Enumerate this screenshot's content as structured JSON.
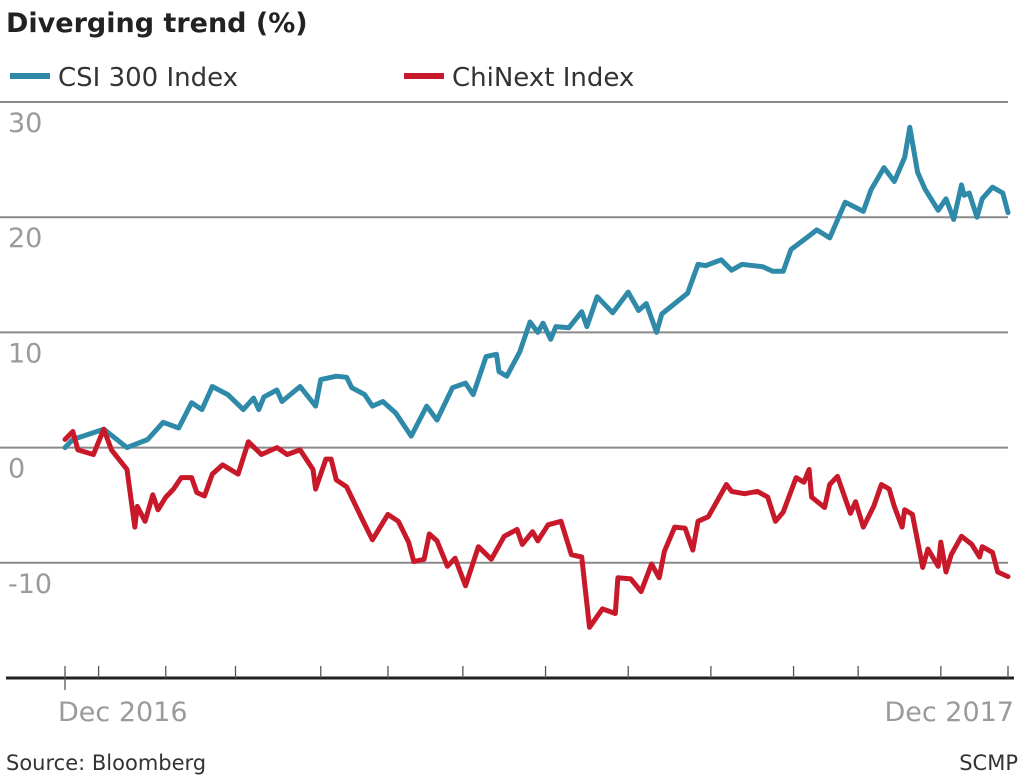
{
  "chart_data": {
    "type": "line",
    "title": "Diverging trend (%)",
    "xlabel": "",
    "ylabel": "",
    "ylim": [
      -20,
      30
    ],
    "xlim": [
      "2016-12-01",
      "2017-12-01"
    ],
    "y_ticks": [
      30,
      20,
      10,
      0,
      -10
    ],
    "x_tick_labels": [
      {
        "date": "2016-12-01",
        "label": "Dec 2016"
      },
      {
        "date": "2017-12-01",
        "label": "Dec 2017"
      }
    ],
    "x_tick_marks": [
      "2016-12-01",
      "2016-12-14",
      "2017-01-09",
      "2017-02-05",
      "2017-03-10",
      "2017-04-05",
      "2017-05-04",
      "2017-06-05",
      "2017-07-07",
      "2017-08-08",
      "2017-09-09",
      "2017-10-04",
      "2017-11-05",
      "2017-12-01"
    ],
    "grid": true,
    "legend": "top-left",
    "source": "Source: Bloomberg",
    "credit": "SCMP",
    "series": [
      {
        "name": "CSI 300 Index",
        "color": "#2e8aa8",
        "points": [
          [
            "2016-12-01",
            0
          ],
          [
            "2016-12-04",
            0.7
          ],
          [
            "2016-12-16",
            1.6
          ],
          [
            "2016-12-25",
            0
          ],
          [
            "2017-01-02",
            0.7
          ],
          [
            "2017-01-08",
            2.2
          ],
          [
            "2017-01-14",
            1.7
          ],
          [
            "2017-01-19",
            3.9
          ],
          [
            "2017-01-23",
            3.3
          ],
          [
            "2017-01-27",
            5.3
          ],
          [
            "2017-02-02",
            4.6
          ],
          [
            "2017-02-08",
            3.3
          ],
          [
            "2017-02-12",
            4.3
          ],
          [
            "2017-02-14",
            3.3
          ],
          [
            "2017-02-16",
            4.4
          ],
          [
            "2017-02-21",
            5.0
          ],
          [
            "2017-02-23",
            4.0
          ],
          [
            "2017-03-02",
            5.3
          ],
          [
            "2017-03-08",
            3.6
          ],
          [
            "2017-03-10",
            5.9
          ],
          [
            "2017-03-16",
            6.2
          ],
          [
            "2017-03-20",
            6.1
          ],
          [
            "2017-03-22",
            5.2
          ],
          [
            "2017-03-27",
            4.6
          ],
          [
            "2017-03-30",
            3.6
          ],
          [
            "2017-04-03",
            4.0
          ],
          [
            "2017-04-08",
            3.0
          ],
          [
            "2017-04-14",
            1.0
          ],
          [
            "2017-04-20",
            3.6
          ],
          [
            "2017-04-24",
            2.4
          ],
          [
            "2017-04-30",
            5.2
          ],
          [
            "2017-05-05",
            5.6
          ],
          [
            "2017-05-08",
            4.6
          ],
          [
            "2017-05-13",
            7.9
          ],
          [
            "2017-05-17",
            8.1
          ],
          [
            "2017-05-18",
            6.6
          ],
          [
            "2017-05-21",
            6.2
          ],
          [
            "2017-05-26",
            8.3
          ],
          [
            "2017-05-30",
            10.9
          ],
          [
            "2017-06-02",
            10.0
          ],
          [
            "2017-06-04",
            10.8
          ],
          [
            "2017-06-07",
            9.4
          ],
          [
            "2017-06-09",
            10.5
          ],
          [
            "2017-06-14",
            10.4
          ],
          [
            "2017-06-19",
            11.8
          ],
          [
            "2017-06-21",
            10.5
          ],
          [
            "2017-06-25",
            13.1
          ],
          [
            "2017-07-01",
            11.7
          ],
          [
            "2017-07-07",
            13.5
          ],
          [
            "2017-07-11",
            11.9
          ],
          [
            "2017-07-14",
            12.5
          ],
          [
            "2017-07-18",
            10.0
          ],
          [
            "2017-07-20",
            11.6
          ],
          [
            "2017-07-30",
            13.4
          ],
          [
            "2017-08-03",
            15.9
          ],
          [
            "2017-08-06",
            15.8
          ],
          [
            "2017-08-12",
            16.3
          ],
          [
            "2017-08-16",
            15.4
          ],
          [
            "2017-08-20",
            15.9
          ],
          [
            "2017-08-28",
            15.7
          ],
          [
            "2017-09-01",
            15.3
          ],
          [
            "2017-09-05",
            15.3
          ],
          [
            "2017-09-08",
            17.2
          ],
          [
            "2017-09-14",
            18.2
          ],
          [
            "2017-09-18",
            18.9
          ],
          [
            "2017-09-23",
            18.2
          ],
          [
            "2017-09-29",
            21.3
          ],
          [
            "2017-10-06",
            20.5
          ],
          [
            "2017-10-09",
            22.4
          ],
          [
            "2017-10-14",
            24.3
          ],
          [
            "2017-10-18",
            23.1
          ],
          [
            "2017-10-22",
            25.2
          ],
          [
            "2017-10-24",
            27.8
          ],
          [
            "2017-10-27",
            23.9
          ],
          [
            "2017-10-30",
            22.4
          ],
          [
            "2017-11-04",
            20.6
          ],
          [
            "2017-11-07",
            21.6
          ],
          [
            "2017-11-10",
            19.8
          ],
          [
            "2017-11-13",
            22.8
          ],
          [
            "2017-11-14",
            21.9
          ],
          [
            "2017-11-16",
            22.1
          ],
          [
            "2017-11-19",
            20.0
          ],
          [
            "2017-11-21",
            21.6
          ],
          [
            "2017-11-25",
            22.6
          ],
          [
            "2017-11-29",
            22.1
          ],
          [
            "2017-12-01",
            20.4
          ]
        ]
      },
      {
        "name": "ChiNext Index",
        "color": "#c8192a",
        "points": [
          [
            "2016-12-01",
            0.7
          ],
          [
            "2016-12-04",
            1.4
          ],
          [
            "2016-12-06",
            -0.2
          ],
          [
            "2016-12-12",
            -0.6
          ],
          [
            "2016-12-16",
            1.6
          ],
          [
            "2016-12-19",
            -0.2
          ],
          [
            "2016-12-25",
            -1.9
          ],
          [
            "2016-12-28",
            -6.9
          ],
          [
            "2016-12-29",
            -5.1
          ],
          [
            "2017-01-01",
            -6.4
          ],
          [
            "2017-01-04",
            -4.1
          ],
          [
            "2017-01-06",
            -5.4
          ],
          [
            "2017-01-09",
            -4.3
          ],
          [
            "2017-01-12",
            -3.6
          ],
          [
            "2017-01-15",
            -2.6
          ],
          [
            "2017-01-19",
            -2.6
          ],
          [
            "2017-01-21",
            -3.9
          ],
          [
            "2017-01-24",
            -4.2
          ],
          [
            "2017-01-27",
            -2.3
          ],
          [
            "2017-01-31",
            -1.5
          ],
          [
            "2017-02-06",
            -2.3
          ],
          [
            "2017-02-10",
            0.5
          ],
          [
            "2017-02-15",
            -0.6
          ],
          [
            "2017-02-21",
            0
          ],
          [
            "2017-02-25",
            -0.6
          ],
          [
            "2017-03-02",
            -0.2
          ],
          [
            "2017-03-07",
            -1.9
          ],
          [
            "2017-03-08",
            -3.6
          ],
          [
            "2017-03-12",
            -1.0
          ],
          [
            "2017-03-14",
            -1.0
          ],
          [
            "2017-03-16",
            -2.8
          ],
          [
            "2017-03-20",
            -3.4
          ],
          [
            "2017-03-26",
            -6.2
          ],
          [
            "2017-03-30",
            -8.0
          ],
          [
            "2017-04-05",
            -5.8
          ],
          [
            "2017-04-09",
            -6.4
          ],
          [
            "2017-04-13",
            -8.2
          ],
          [
            "2017-04-15",
            -9.9
          ],
          [
            "2017-04-19",
            -9.7
          ],
          [
            "2017-04-21",
            -7.5
          ],
          [
            "2017-04-24",
            -8.1
          ],
          [
            "2017-04-28",
            -10.3
          ],
          [
            "2017-05-01",
            -9.6
          ],
          [
            "2017-05-05",
            -12.0
          ],
          [
            "2017-05-10",
            -8.6
          ],
          [
            "2017-05-15",
            -9.7
          ],
          [
            "2017-05-20",
            -7.7
          ],
          [
            "2017-05-25",
            -7.1
          ],
          [
            "2017-05-27",
            -8.4
          ],
          [
            "2017-05-31",
            -7.3
          ],
          [
            "2017-06-02",
            -8.1
          ],
          [
            "2017-06-06",
            -6.7
          ],
          [
            "2017-06-11",
            -6.4
          ],
          [
            "2017-06-15",
            -9.3
          ],
          [
            "2017-06-19",
            -9.5
          ],
          [
            "2017-06-22",
            -15.6
          ],
          [
            "2017-06-27",
            -14.0
          ],
          [
            "2017-07-02",
            -14.4
          ],
          [
            "2017-07-03",
            -11.3
          ],
          [
            "2017-07-08",
            -11.4
          ],
          [
            "2017-07-12",
            -12.5
          ],
          [
            "2017-07-16",
            -10.1
          ],
          [
            "2017-07-19",
            -11.3
          ],
          [
            "2017-07-21",
            -9.0
          ],
          [
            "2017-07-25",
            -6.9
          ],
          [
            "2017-07-29",
            -7.0
          ],
          [
            "2017-08-01",
            -8.9
          ],
          [
            "2017-08-03",
            -6.4
          ],
          [
            "2017-08-07",
            -6.0
          ],
          [
            "2017-08-14",
            -3.2
          ],
          [
            "2017-08-16",
            -3.8
          ],
          [
            "2017-08-21",
            -4.0
          ],
          [
            "2017-08-26",
            -3.8
          ],
          [
            "2017-08-30",
            -4.3
          ],
          [
            "2017-09-02",
            -6.4
          ],
          [
            "2017-09-05",
            -5.6
          ],
          [
            "2017-09-10",
            -2.6
          ],
          [
            "2017-09-13",
            -3.0
          ],
          [
            "2017-09-15",
            -1.9
          ],
          [
            "2017-09-16",
            -4.3
          ],
          [
            "2017-09-21",
            -5.2
          ],
          [
            "2017-09-23",
            -3.2
          ],
          [
            "2017-09-26",
            -2.5
          ],
          [
            "2017-10-01",
            -5.7
          ],
          [
            "2017-10-03",
            -4.7
          ],
          [
            "2017-10-06",
            -6.9
          ],
          [
            "2017-10-10",
            -5.1
          ],
          [
            "2017-10-13",
            -3.2
          ],
          [
            "2017-10-16",
            -3.6
          ],
          [
            "2017-10-18",
            -5.1
          ],
          [
            "2017-10-21",
            -6.9
          ],
          [
            "2017-10-22",
            -5.4
          ],
          [
            "2017-10-25",
            -5.8
          ],
          [
            "2017-10-29",
            -10.4
          ],
          [
            "2017-10-31",
            -8.8
          ],
          [
            "2017-11-04",
            -10.3
          ],
          [
            "2017-11-05",
            -8.2
          ],
          [
            "2017-11-07",
            -10.8
          ],
          [
            "2017-11-09",
            -9.3
          ],
          [
            "2017-11-13",
            -7.7
          ],
          [
            "2017-11-17",
            -8.4
          ],
          [
            "2017-11-20",
            -9.5
          ],
          [
            "2017-11-21",
            -8.6
          ],
          [
            "2017-11-25",
            -9.1
          ],
          [
            "2017-11-27",
            -10.8
          ],
          [
            "2017-12-01",
            -11.2
          ]
        ]
      }
    ]
  }
}
